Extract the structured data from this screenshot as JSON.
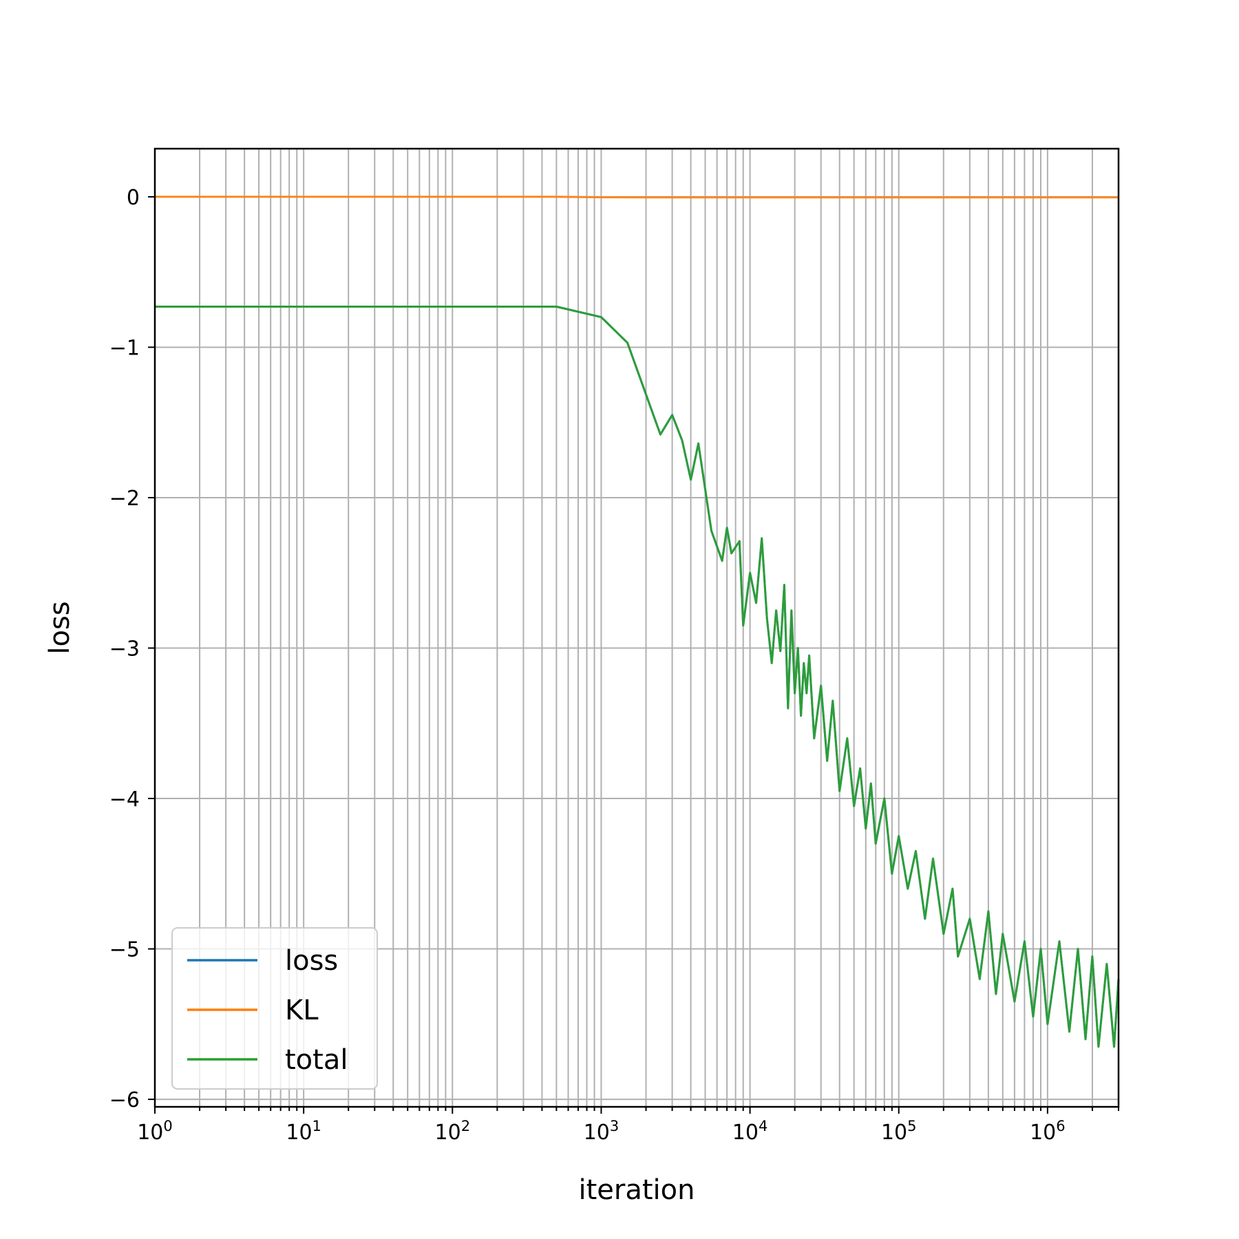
{
  "chart_data": {
    "type": "line",
    "title": "",
    "xlabel": "iteration",
    "ylabel": "loss",
    "xscale": "log",
    "xlim": [
      1,
      3000000
    ],
    "ylim": [
      -6.05,
      0.32
    ],
    "grid": true,
    "grid_minor_x": true,
    "legend_placement": "lower-left",
    "x_ticks": [
      1,
      10,
      100,
      1000,
      10000,
      100000,
      1000000
    ],
    "x_tick_labels": [
      {
        "base": "10",
        "exp": "0"
      },
      {
        "base": "10",
        "exp": "1"
      },
      {
        "base": "10",
        "exp": "2"
      },
      {
        "base": "10",
        "exp": "3"
      },
      {
        "base": "10",
        "exp": "4"
      },
      {
        "base": "10",
        "exp": "5"
      },
      {
        "base": "10",
        "exp": "6"
      }
    ],
    "y_ticks": [
      0,
      -1,
      -2,
      -3,
      -4,
      -5,
      -6
    ],
    "y_tick_labels": [
      "0",
      "−1",
      "−2",
      "−3",
      "−4",
      "−5",
      "−6"
    ],
    "series": [
      {
        "name": "loss",
        "color": "#1f77b4",
        "x": [
          1,
          500,
          1000,
          1500,
          2500,
          3000,
          3500,
          4000,
          4500,
          5500,
          6500,
          7000,
          7500,
          8500,
          9000,
          10000,
          11000,
          12000,
          13000,
          14000,
          15000,
          16000,
          17000,
          18000,
          19000,
          20000,
          21000,
          22000,
          23000,
          24000,
          25000,
          27000,
          30000,
          33000,
          36000,
          40000,
          45000,
          50000,
          55000,
          60000,
          65000,
          70000,
          80000,
          90000,
          100000,
          115000,
          130000,
          150000,
          170000,
          200000,
          230000,
          250000,
          300000,
          350000,
          400000,
          450000,
          500000,
          600000,
          700000,
          800000,
          900000,
          1000000,
          1200000,
          1400000,
          1600000,
          1800000,
          2000000,
          2200000,
          2500000,
          2800000,
          3000000
        ],
        "y": [
          -0.73,
          -0.73,
          -0.8,
          -0.97,
          -1.58,
          -1.45,
          -1.62,
          -1.88,
          -1.64,
          -2.22,
          -2.42,
          -2.2,
          -2.37,
          -2.29,
          -2.85,
          -2.5,
          -2.7,
          -2.27,
          -2.8,
          -3.1,
          -2.75,
          -3.02,
          -2.58,
          -3.4,
          -2.75,
          -3.3,
          -3.0,
          -3.45,
          -3.1,
          -3.3,
          -3.05,
          -3.6,
          -3.25,
          -3.75,
          -3.35,
          -3.95,
          -3.6,
          -4.05,
          -3.8,
          -4.2,
          -3.9,
          -4.3,
          -4.0,
          -4.5,
          -4.25,
          -4.6,
          -4.35,
          -4.8,
          -4.4,
          -4.9,
          -4.6,
          -5.05,
          -4.8,
          -5.2,
          -4.75,
          -5.3,
          -4.9,
          -5.35,
          -4.95,
          -5.45,
          -5.0,
          -5.5,
          -4.95,
          -5.55,
          -5.0,
          -5.6,
          -5.05,
          -5.65,
          -5.1,
          -5.65,
          -5.2
        ]
      },
      {
        "name": "KL",
        "color": "#ff7f0e",
        "x": [
          1,
          500,
          1000,
          2000,
          10000,
          100000,
          1000000,
          3000000
        ],
        "y": [
          0,
          0,
          -0.003,
          -0.004,
          -0.004,
          -0.004,
          -0.004,
          -0.004
        ]
      },
      {
        "name": "total",
        "color": "#2ca02c",
        "x": [
          1,
          500,
          1000,
          1500,
          2500,
          3000,
          3500,
          4000,
          4500,
          5500,
          6500,
          7000,
          7500,
          8500,
          9000,
          10000,
          11000,
          12000,
          13000,
          14000,
          15000,
          16000,
          17000,
          18000,
          19000,
          20000,
          21000,
          22000,
          23000,
          24000,
          25000,
          27000,
          30000,
          33000,
          36000,
          40000,
          45000,
          50000,
          55000,
          60000,
          65000,
          70000,
          80000,
          90000,
          100000,
          115000,
          130000,
          150000,
          170000,
          200000,
          230000,
          250000,
          300000,
          350000,
          400000,
          450000,
          500000,
          600000,
          700000,
          800000,
          900000,
          1000000,
          1200000,
          1400000,
          1600000,
          1800000,
          2000000,
          2200000,
          2500000,
          2800000,
          3000000
        ],
        "y": [
          -0.73,
          -0.73,
          -0.8,
          -0.97,
          -1.58,
          -1.45,
          -1.62,
          -1.88,
          -1.64,
          -2.22,
          -2.42,
          -2.2,
          -2.37,
          -2.29,
          -2.85,
          -2.5,
          -2.7,
          -2.27,
          -2.8,
          -3.1,
          -2.75,
          -3.02,
          -2.58,
          -3.4,
          -2.75,
          -3.3,
          -3.0,
          -3.45,
          -3.1,
          -3.3,
          -3.05,
          -3.6,
          -3.25,
          -3.75,
          -3.35,
          -3.95,
          -3.6,
          -4.05,
          -3.8,
          -4.2,
          -3.9,
          -4.3,
          -4.0,
          -4.5,
          -4.25,
          -4.6,
          -4.35,
          -4.8,
          -4.4,
          -4.9,
          -4.6,
          -5.05,
          -4.8,
          -5.2,
          -4.75,
          -5.3,
          -4.9,
          -5.35,
          -4.95,
          -5.45,
          -5.0,
          -5.5,
          -4.95,
          -5.55,
          -5.0,
          -5.6,
          -5.05,
          -5.65,
          -5.1,
          -5.65,
          -5.2
        ]
      }
    ]
  }
}
